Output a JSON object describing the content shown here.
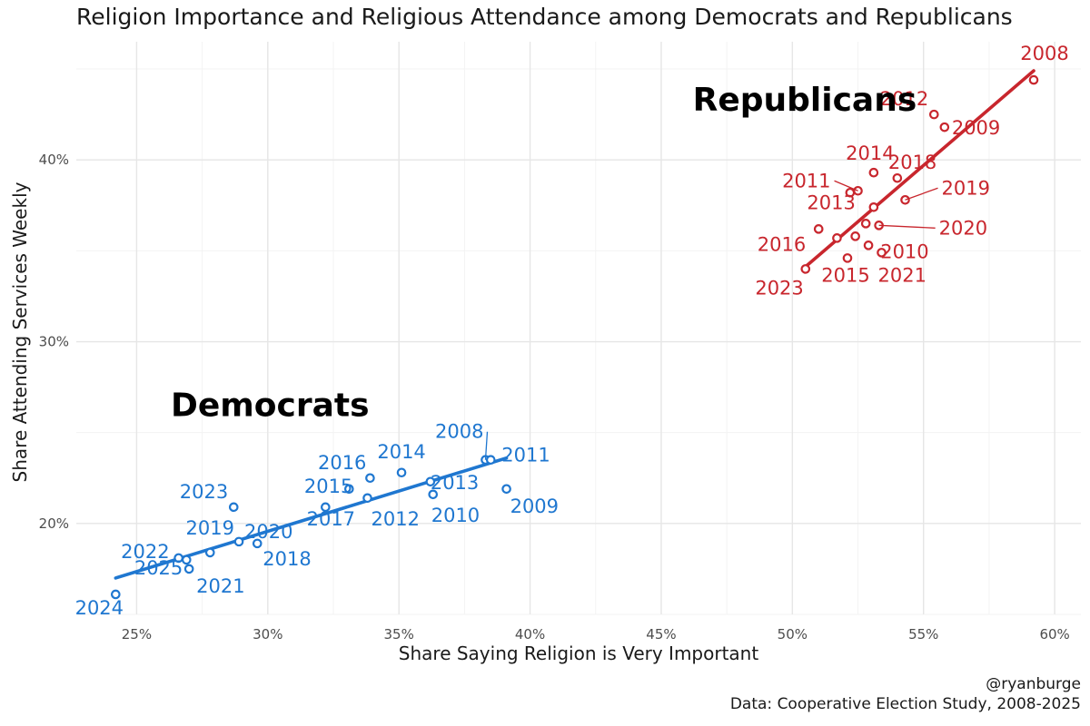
{
  "chart_data": {
    "type": "scatter",
    "title": "Religion Importance and Religious Attendance among Democrats and Republicans",
    "xlabel": "Share Saying Religion is Very Important",
    "ylabel": "Share Attending Services Weekly",
    "xlim": [
      22.7,
      61.0
    ],
    "ylim": [
      15.0,
      46.5
    ],
    "x_ticks": [
      25,
      30,
      35,
      40,
      45,
      50,
      55,
      60
    ],
    "x_tick_labels": [
      "25%",
      "30%",
      "35%",
      "40%",
      "45%",
      "50%",
      "55%",
      "60%"
    ],
    "y_ticks": [
      20,
      30,
      40
    ],
    "y_tick_labels": [
      "20%",
      "30%",
      "40%"
    ],
    "grid": true,
    "legend": "none",
    "caption": [
      "@ryanburge",
      "Data: Cooperative Election Study, 2008-2025"
    ],
    "series": [
      {
        "name": "Democrats",
        "color": "#1f77d0",
        "label_pos": [
          26.3,
          25.9
        ],
        "fit": {
          "x0": 24.2,
          "y0": 17.0,
          "x1": 39.1,
          "y1": 23.6
        },
        "points": [
          {
            "year": "2008",
            "x": 38.3,
            "y": 23.5
          },
          {
            "year": "2009",
            "x": 39.1,
            "y": 21.9
          },
          {
            "year": "2010",
            "x": 36.3,
            "y": 21.6
          },
          {
            "year": "2011",
            "x": 38.5,
            "y": 23.5
          },
          {
            "year": "2012",
            "x": 33.8,
            "y": 21.4
          },
          {
            "year": "2013",
            "x": 36.2,
            "y": 22.3
          },
          {
            "year": "2014",
            "x": 35.1,
            "y": 22.8
          },
          {
            "year": "2015",
            "x": 33.1,
            "y": 21.9
          },
          {
            "year": "2016",
            "x": 33.9,
            "y": 22.5
          },
          {
            "year": "2017",
            "x": 32.2,
            "y": 20.9
          },
          {
            "year": "2018",
            "x": 29.6,
            "y": 18.9
          },
          {
            "year": "2019",
            "x": 27.8,
            "y": 18.4
          },
          {
            "year": "2020",
            "x": 28.9,
            "y": 19.0
          },
          {
            "year": "2021",
            "x": 27.0,
            "y": 17.5
          },
          {
            "year": "2022",
            "x": 26.6,
            "y": 18.1
          },
          {
            "year": "2023",
            "x": 28.7,
            "y": 20.9
          },
          {
            "year": "2024",
            "x": 24.2,
            "y": 16.1
          },
          {
            "year": "2025",
            "x": 26.9,
            "y": 18.0
          }
        ]
      },
      {
        "name": "Republicans",
        "color": "#c8262d",
        "label_pos": [
          46.2,
          42.7
        ],
        "fit": {
          "x0": 50.4,
          "y0": 34.0,
          "x1": 59.2,
          "y1": 44.9
        },
        "points": [
          {
            "year": "2008",
            "x": 59.2,
            "y": 44.4
          },
          {
            "year": "2009",
            "x": 55.8,
            "y": 41.8
          },
          {
            "year": "2010",
            "x": 52.8,
            "y": 36.5
          },
          {
            "year": "2011",
            "x": 52.5,
            "y": 38.3
          },
          {
            "year": "2012",
            "x": 55.4,
            "y": 42.5
          },
          {
            "year": "2013",
            "x": 53.1,
            "y": 37.4
          },
          {
            "year": "2014",
            "x": 53.1,
            "y": 39.3
          },
          {
            "year": "2015",
            "x": 52.1,
            "y": 34.6
          },
          {
            "year": "2016",
            "x": 51.0,
            "y": 36.2
          },
          {
            "year": "2018",
            "x": 54.0,
            "y": 39.0
          },
          {
            "year": "2019",
            "x": 54.3,
            "y": 37.8
          },
          {
            "year": "2020",
            "x": 53.3,
            "y": 36.4
          },
          {
            "year": "2021",
            "x": 53.4,
            "y": 34.9
          },
          {
            "year": "2023",
            "x": 50.5,
            "y": 34.0
          },
          {
            "year": "",
            "x": 52.2,
            "y": 38.2
          },
          {
            "year": "",
            "x": 51.7,
            "y": 35.7
          },
          {
            "year": "",
            "x": 52.4,
            "y": 35.8
          },
          {
            "year": "",
            "x": 52.9,
            "y": 35.3
          }
        ]
      }
    ]
  }
}
